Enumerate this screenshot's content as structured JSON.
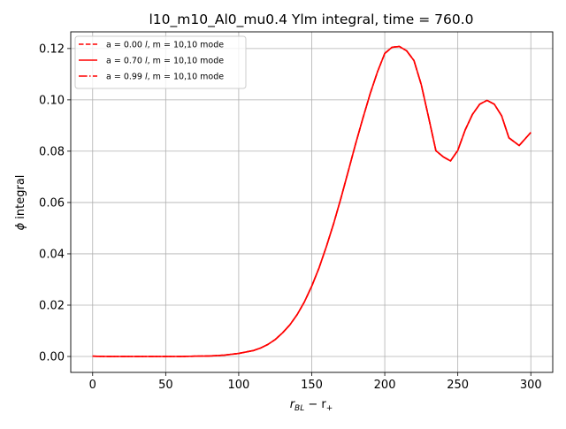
{
  "chart_data": {
    "type": "line",
    "title": "l10_m10_Al0_mu0.4 Ylm integral, time = 760.0",
    "xlabel_main": "r",
    "xlabel_sub1": "BL",
    "xlabel_mid": " − r",
    "xlabel_sub2": "+",
    "ylabel_sym": "ϕ",
    "ylabel_rest": " integral",
    "xlim": [
      -15,
      315
    ],
    "ylim": [
      -0.0062,
      0.1265
    ],
    "xticks": [
      0,
      50,
      100,
      150,
      200,
      250,
      300
    ],
    "xtick_labels": [
      "0",
      "50",
      "100",
      "150",
      "200",
      "250",
      "300"
    ],
    "yticks": [
      0.0,
      0.02,
      0.04,
      0.06,
      0.08,
      0.1,
      0.12
    ],
    "ytick_labels": [
      "0.00",
      "0.02",
      "0.04",
      "0.06",
      "0.08",
      "0.10",
      "0.12"
    ],
    "grid": true,
    "legend_position": "upper-left",
    "x": [
      0,
      10,
      20,
      30,
      40,
      50,
      60,
      70,
      80,
      90,
      100,
      110,
      115,
      120,
      125,
      130,
      135,
      140,
      145,
      150,
      155,
      160,
      165,
      170,
      175,
      180,
      185,
      190,
      195,
      200,
      205,
      210,
      215,
      220,
      225,
      230,
      235,
      240,
      245,
      250,
      255,
      260,
      265,
      270,
      275,
      280,
      285,
      292,
      300
    ],
    "series": [
      {
        "prefix": "a = 0.00 ",
        "var_l": "l",
        "middle": ", m = ",
        "suffix": " 10,10 mode",
        "color": "#ff0000",
        "linestyle": "dashed",
        "y": [
          0.0001,
          0.0,
          0.0,
          0.0,
          0.0,
          0.0,
          0.0,
          0.0001,
          0.0002,
          0.0005,
          0.0012,
          0.0023,
          0.0033,
          0.0047,
          0.0066,
          0.0092,
          0.0123,
          0.0163,
          0.0213,
          0.0274,
          0.0345,
          0.0428,
          0.0518,
          0.0617,
          0.0722,
          0.0828,
          0.0928,
          0.1024,
          0.1109,
          0.1181,
          0.1205,
          0.1208,
          0.1191,
          0.1153,
          0.1059,
          0.0932,
          0.0802,
          0.0778,
          0.0762,
          0.0803,
          0.0882,
          0.0943,
          0.0983,
          0.0998,
          0.0983,
          0.0938,
          0.0852,
          0.0822,
          0.0873
        ]
      },
      {
        "prefix": "a = 0.70 ",
        "var_l": "l",
        "middle": ", m = ",
        "suffix": " 10,10 mode",
        "color": "#ff0000",
        "linestyle": "solid",
        "y": [
          0.0001,
          0.0,
          0.0,
          0.0,
          0.0,
          0.0,
          0.0,
          0.0001,
          0.0002,
          0.0005,
          0.0012,
          0.0023,
          0.0033,
          0.0047,
          0.0066,
          0.0092,
          0.0123,
          0.0163,
          0.0213,
          0.0274,
          0.0345,
          0.0428,
          0.0518,
          0.0617,
          0.0722,
          0.0828,
          0.0928,
          0.1024,
          0.1109,
          0.1181,
          0.1205,
          0.1208,
          0.1191,
          0.1153,
          0.1059,
          0.0932,
          0.0802,
          0.0778,
          0.0762,
          0.0803,
          0.0882,
          0.0943,
          0.0983,
          0.0998,
          0.0983,
          0.0938,
          0.0852,
          0.0822,
          0.0873
        ]
      },
      {
        "prefix": "a = 0.99 ",
        "var_l": "l",
        "middle": ", m = ",
        "suffix": " 10,10 mode",
        "color": "#ff0000",
        "linestyle": "dashdot",
        "y": [
          0.0001,
          0.0,
          0.0,
          0.0,
          0.0,
          0.0,
          0.0,
          0.0001,
          0.0002,
          0.0005,
          0.0012,
          0.0023,
          0.0033,
          0.0047,
          0.0066,
          0.0092,
          0.0123,
          0.0163,
          0.0213,
          0.0274,
          0.0345,
          0.0428,
          0.0518,
          0.0617,
          0.0722,
          0.0828,
          0.0928,
          0.1024,
          0.1109,
          0.1181,
          0.1205,
          0.1208,
          0.1191,
          0.1153,
          0.1059,
          0.0932,
          0.0802,
          0.0778,
          0.0762,
          0.0803,
          0.0882,
          0.0943,
          0.0983,
          0.0998,
          0.0983,
          0.0938,
          0.0852,
          0.0822,
          0.0873
        ]
      }
    ]
  }
}
